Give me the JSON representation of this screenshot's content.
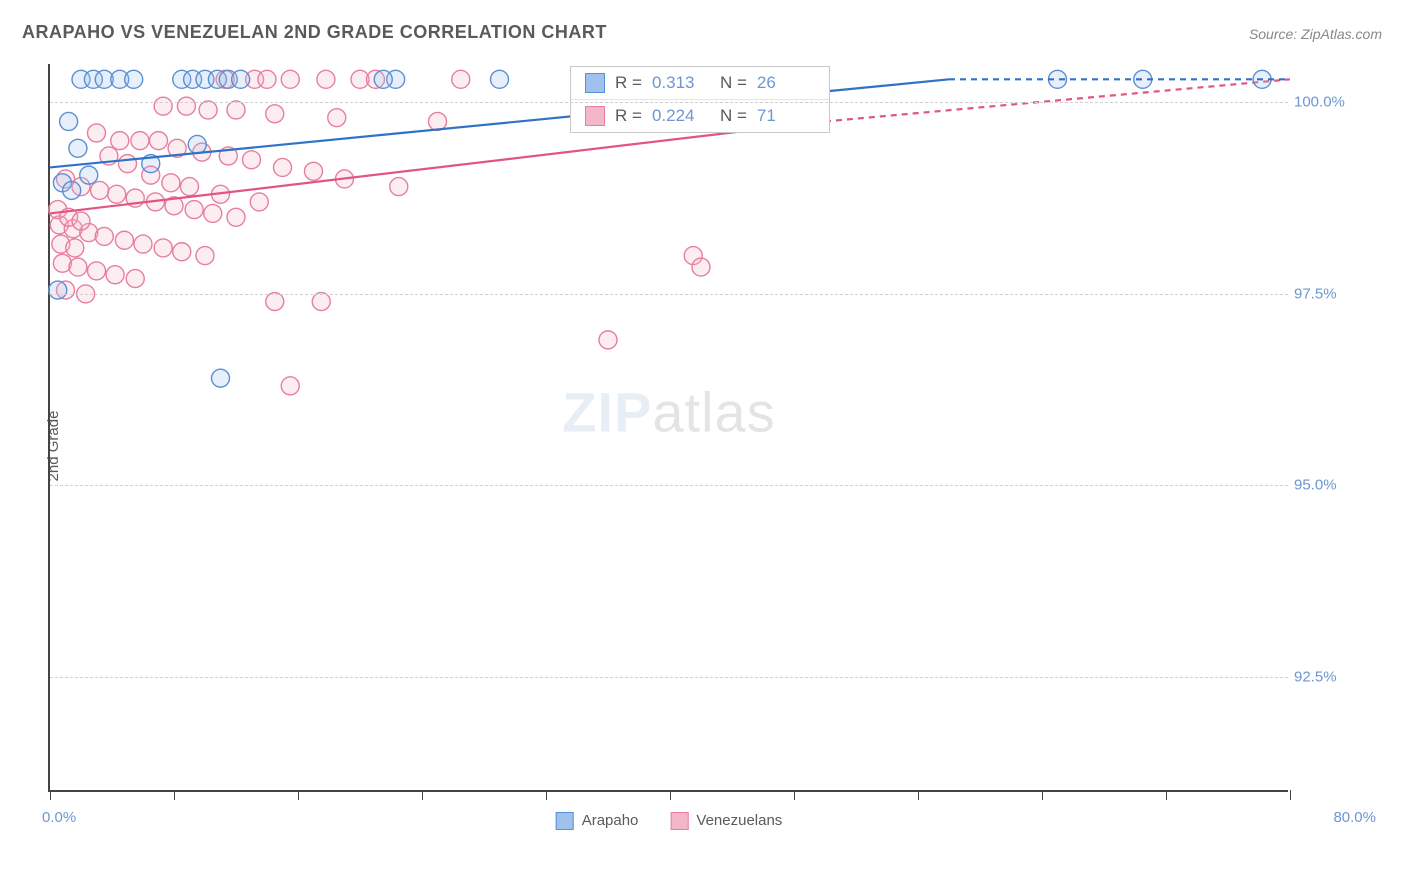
{
  "title": "ARAPAHO VS VENEZUELAN 2ND GRADE CORRELATION CHART",
  "source": "Source: ZipAtlas.com",
  "ylabel": "2nd Grade",
  "watermark": {
    "zip": "ZIP",
    "atlas": "atlas"
  },
  "chart": {
    "type": "scatter",
    "xlim": [
      0,
      80
    ],
    "ylim": [
      91.0,
      100.5
    ],
    "xtick_positions": [
      0,
      8,
      16,
      24,
      32,
      40,
      48,
      56,
      64,
      72,
      80
    ],
    "ytick_positions": [
      92.5,
      95.0,
      97.5,
      100.0
    ],
    "ytick_labels": [
      "92.5%",
      "95.0%",
      "97.5%",
      "100.0%"
    ],
    "xmin_label": "0.0%",
    "xmax_label": "80.0%",
    "background_color": "#ffffff",
    "grid_color": "#d0d0d0",
    "axis_color": "#444444",
    "tick_label_color": "#6d97d2",
    "marker_radius": 9,
    "marker_fill_opacity": 0.25,
    "marker_stroke_width": 1.4,
    "trend_line_width": 2.2,
    "series": {
      "arapaho": {
        "label": "Arapaho",
        "color_fill": "#9ec2ec",
        "color_stroke": "#5b8fd4",
        "trend_color": "#2f72c6",
        "R": "0.313",
        "N": "26",
        "trend": {
          "x1": 0,
          "y1": 99.15,
          "x2": 58,
          "y2": 100.3,
          "dash_x2": 80,
          "dash_y2": 100.3
        },
        "points": [
          [
            2.0,
            100.3
          ],
          [
            2.8,
            100.3
          ],
          [
            3.5,
            100.3
          ],
          [
            4.5,
            100.3
          ],
          [
            5.4,
            100.3
          ],
          [
            8.5,
            100.3
          ],
          [
            9.2,
            100.3
          ],
          [
            10.0,
            100.3
          ],
          [
            10.8,
            100.3
          ],
          [
            11.5,
            100.3
          ],
          [
            12.3,
            100.3
          ],
          [
            22.3,
            100.3
          ],
          [
            29.0,
            100.3
          ],
          [
            65.0,
            100.3
          ],
          [
            70.5,
            100.3
          ],
          [
            78.2,
            100.3
          ],
          [
            1.2,
            99.75
          ],
          [
            1.8,
            99.4
          ],
          [
            9.5,
            99.45
          ],
          [
            6.5,
            99.2
          ],
          [
            0.8,
            98.95
          ],
          [
            1.4,
            98.85
          ],
          [
            21.5,
            100.3
          ],
          [
            0.5,
            97.55
          ],
          [
            11.0,
            96.4
          ],
          [
            2.5,
            99.05
          ]
        ]
      },
      "venezuelan": {
        "label": "Venezuelans",
        "color_fill": "#f4b7c8",
        "color_stroke": "#e77e9f",
        "trend_color": "#e15582",
        "R": "0.224",
        "N": "71",
        "trend": {
          "x1": 0,
          "y1": 98.55,
          "x2": 50,
          "y2": 99.75,
          "dash_x2": 80,
          "dash_y2": 100.3
        },
        "points": [
          [
            11.3,
            100.3
          ],
          [
            13.2,
            100.3
          ],
          [
            14.0,
            100.3
          ],
          [
            15.5,
            100.3
          ],
          [
            17.8,
            100.3
          ],
          [
            20.0,
            100.3
          ],
          [
            7.3,
            99.95
          ],
          [
            8.8,
            99.95
          ],
          [
            10.2,
            99.9
          ],
          [
            12.0,
            99.9
          ],
          [
            14.5,
            99.85
          ],
          [
            18.5,
            99.8
          ],
          [
            21.0,
            100.3
          ],
          [
            25.0,
            99.75
          ],
          [
            3.0,
            99.6
          ],
          [
            4.5,
            99.5
          ],
          [
            5.8,
            99.5
          ],
          [
            7.0,
            99.5
          ],
          [
            8.2,
            99.4
          ],
          [
            9.8,
            99.35
          ],
          [
            11.5,
            99.3
          ],
          [
            13.0,
            99.25
          ],
          [
            15.0,
            99.15
          ],
          [
            17.0,
            99.1
          ],
          [
            1.0,
            99.0
          ],
          [
            2.0,
            98.9
          ],
          [
            3.2,
            98.85
          ],
          [
            4.3,
            98.8
          ],
          [
            5.5,
            98.75
          ],
          [
            6.8,
            98.7
          ],
          [
            8.0,
            98.65
          ],
          [
            9.3,
            98.6
          ],
          [
            10.5,
            98.55
          ],
          [
            12.0,
            98.5
          ],
          [
            0.6,
            98.4
          ],
          [
            1.5,
            98.35
          ],
          [
            2.5,
            98.3
          ],
          [
            3.5,
            98.25
          ],
          [
            4.8,
            98.2
          ],
          [
            6.0,
            98.15
          ],
          [
            7.3,
            98.1
          ],
          [
            8.5,
            98.05
          ],
          [
            10.0,
            98.0
          ],
          [
            0.8,
            97.9
          ],
          [
            1.8,
            97.85
          ],
          [
            3.0,
            97.8
          ],
          [
            4.2,
            97.75
          ],
          [
            5.5,
            97.7
          ],
          [
            41.5,
            98.0
          ],
          [
            42.0,
            97.85
          ],
          [
            1.0,
            97.55
          ],
          [
            2.3,
            97.5
          ],
          [
            17.5,
            97.4
          ],
          [
            14.5,
            97.4
          ],
          [
            36.0,
            96.9
          ],
          [
            15.5,
            96.3
          ],
          [
            26.5,
            100.3
          ],
          [
            0.5,
            98.6
          ],
          [
            1.2,
            98.5
          ],
          [
            2.0,
            98.45
          ],
          [
            6.5,
            99.05
          ],
          [
            7.8,
            98.95
          ],
          [
            9.0,
            98.9
          ],
          [
            11.0,
            98.8
          ],
          [
            13.5,
            98.7
          ],
          [
            0.7,
            98.15
          ],
          [
            1.6,
            98.1
          ],
          [
            3.8,
            99.3
          ],
          [
            5.0,
            99.2
          ],
          [
            19.0,
            99.0
          ],
          [
            22.5,
            98.9
          ]
        ]
      }
    }
  },
  "stats_box": {
    "r_label": "R  =",
    "n_label": "N  ="
  },
  "legend": {
    "swatch_size": 18
  }
}
